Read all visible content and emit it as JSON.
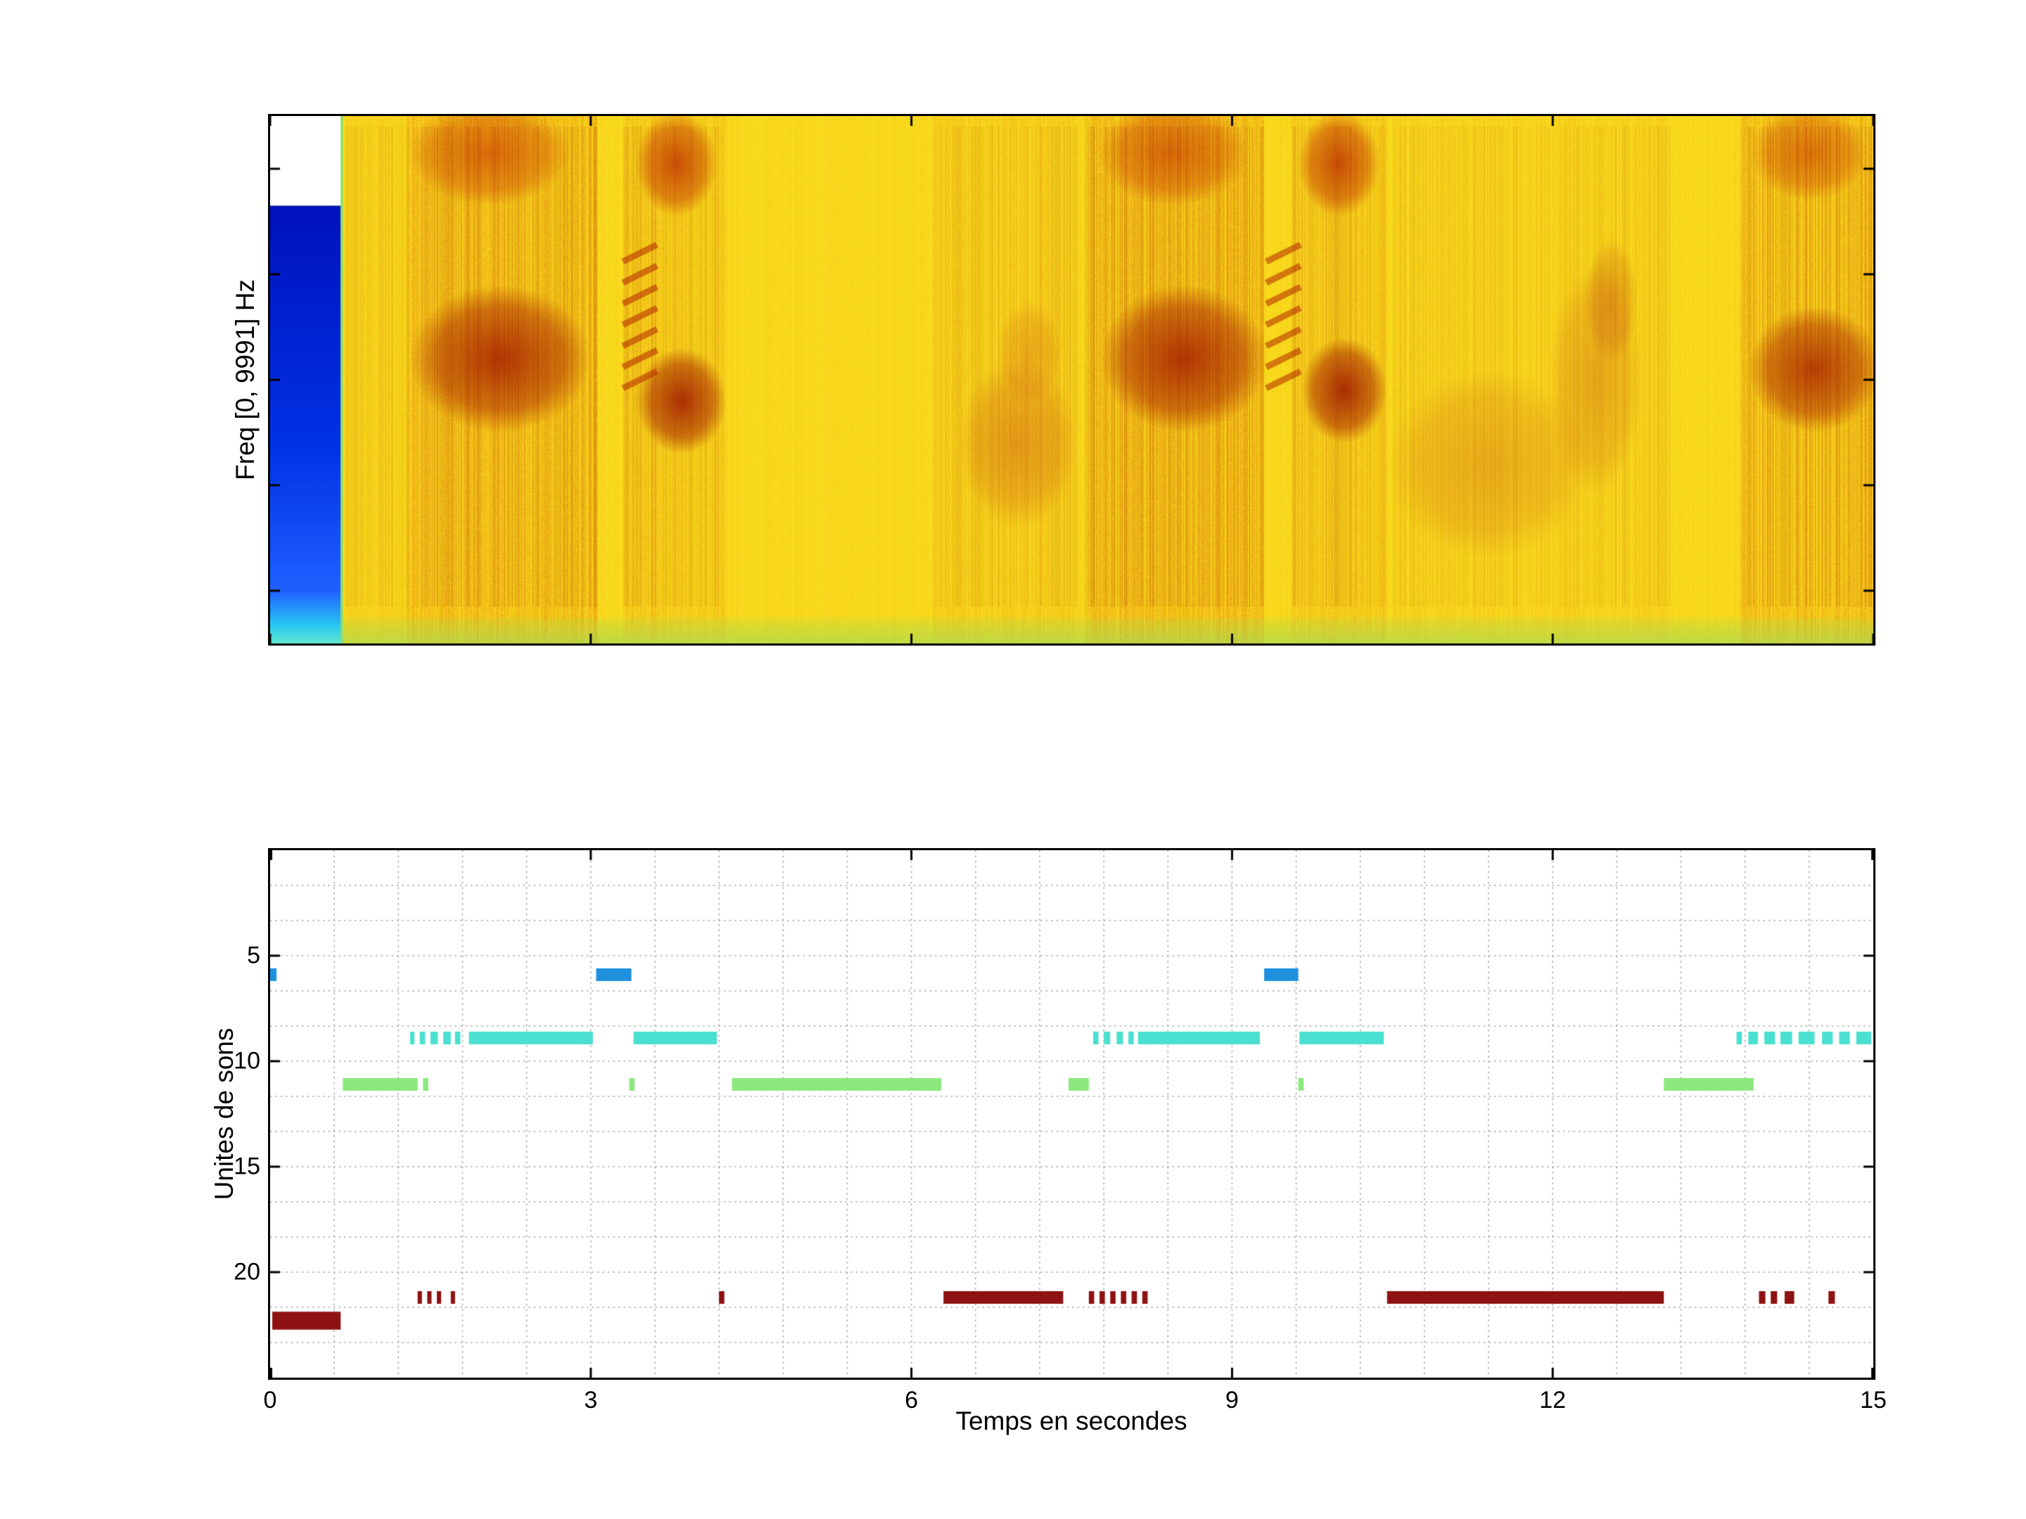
{
  "figure": {
    "background": "#ffffff"
  },
  "chart_data": [
    {
      "type": "heatmap",
      "title": "",
      "ylabel": "Freq [0, 9991] Hz",
      "xlabel": "",
      "xlim": [
        0,
        15
      ],
      "ylim_hz": [
        0,
        9991
      ],
      "legend": "none",
      "palette": {
        "base": "#fae01e",
        "stripe": "#d75000",
        "bottom_strip": "#a0dc5a",
        "blue_top": "#0012bc",
        "blue_mid": "#0032e6",
        "blue_low": "#2060ff",
        "cyan_bottom": "#28c8f0",
        "white": "#ffffff",
        "sep": "#78e088"
      },
      "left_block": {
        "x1": 0.66,
        "white_y1": 0.17
      },
      "bottom_strip_y0": 0.95,
      "striation_bands": [
        {
          "x0": 0.7,
          "x1": 1.28,
          "s": 0.22
        },
        {
          "x0": 1.28,
          "x1": 3.06,
          "s": 0.5
        },
        {
          "x0": 3.3,
          "x1": 4.25,
          "s": 0.33
        },
        {
          "x0": 6.2,
          "x1": 7.55,
          "s": 0.28
        },
        {
          "x0": 7.62,
          "x1": 9.3,
          "s": 0.5
        },
        {
          "x0": 9.55,
          "x1": 10.45,
          "s": 0.33
        },
        {
          "x0": 10.5,
          "x1": 13.1,
          "s": 0.22
        },
        {
          "x0": 13.75,
          "x1": 15.0,
          "s": 0.48
        }
      ],
      "blobs": [
        {
          "x": 2.15,
          "y": 0.46,
          "rx": 0.85,
          "ry": 0.14,
          "color": "#a81e00",
          "a": 0.85
        },
        {
          "x": 2.05,
          "y": 0.07,
          "rx": 0.75,
          "ry": 0.1,
          "color": "#c83200",
          "a": 0.6
        },
        {
          "x": 3.85,
          "y": 0.54,
          "rx": 0.42,
          "ry": 0.1,
          "color": "#a01500",
          "a": 0.85
        },
        {
          "x": 3.8,
          "y": 0.09,
          "rx": 0.38,
          "ry": 0.1,
          "color": "#c02800",
          "a": 0.75
        },
        {
          "x": 7.0,
          "y": 0.62,
          "rx": 0.55,
          "ry": 0.16,
          "color": "#d06414",
          "a": 0.5
        },
        {
          "x": 7.1,
          "y": 0.45,
          "rx": 0.3,
          "ry": 0.1,
          "color": "#d06414",
          "a": 0.35
        },
        {
          "x": 8.55,
          "y": 0.46,
          "rx": 0.78,
          "ry": 0.14,
          "color": "#a81e00",
          "a": 0.85
        },
        {
          "x": 8.45,
          "y": 0.07,
          "rx": 0.7,
          "ry": 0.1,
          "color": "#c83200",
          "a": 0.6
        },
        {
          "x": 10.05,
          "y": 0.52,
          "rx": 0.4,
          "ry": 0.1,
          "color": "#a01500",
          "a": 0.85
        },
        {
          "x": 10.0,
          "y": 0.09,
          "rx": 0.38,
          "ry": 0.1,
          "color": "#c02800",
          "a": 0.75
        },
        {
          "x": 11.4,
          "y": 0.66,
          "rx": 0.95,
          "ry": 0.18,
          "color": "#d87818",
          "a": 0.42
        },
        {
          "x": 12.4,
          "y": 0.5,
          "rx": 0.45,
          "ry": 0.22,
          "color": "#d06818",
          "a": 0.4
        },
        {
          "x": 12.55,
          "y": 0.35,
          "rx": 0.25,
          "ry": 0.12,
          "color": "#c85a10",
          "a": 0.45
        },
        {
          "x": 14.45,
          "y": 0.48,
          "rx": 0.62,
          "ry": 0.12,
          "color": "#a81e00",
          "a": 0.8
        },
        {
          "x": 14.4,
          "y": 0.07,
          "rx": 0.55,
          "ry": 0.09,
          "color": "#c83200",
          "a": 0.55
        }
      ],
      "chevrons": [
        {
          "x0": 3.3,
          "x1": 3.62,
          "ytop": 0.26,
          "ybot": 0.5,
          "count": 7
        },
        {
          "x0": 9.32,
          "x1": 9.64,
          "ytop": 0.26,
          "ybot": 0.5,
          "count": 7
        }
      ]
    },
    {
      "type": "segments",
      "title": "",
      "xlabel": "Temps en secondes",
      "ylabel": "Unites de sons",
      "xlim": [
        0,
        15
      ],
      "ylim": [
        0,
        25
      ],
      "y_reversed": true,
      "xticks": [
        0,
        3,
        6,
        9,
        12,
        15
      ],
      "yticks": [
        5,
        10,
        15,
        20
      ],
      "grid": {
        "x_step": 0.6,
        "y_step": 1.6667,
        "color": "#a8a8a8",
        "style": "dotted"
      },
      "series": [
        {
          "name": "blue-units",
          "color": "#1e90dd",
          "y": 5.9,
          "h": 0.6,
          "segments": [
            [
              0.0,
              0.06
            ],
            [
              3.05,
              3.38
            ],
            [
              9.3,
              9.62
            ]
          ]
        },
        {
          "name": "cyan-units",
          "color": "#4ae0d0",
          "y": 8.9,
          "h": 0.6,
          "segments": [
            [
              1.31,
              1.35
            ],
            [
              1.4,
              1.45
            ],
            [
              1.5,
              1.57
            ],
            [
              1.62,
              1.69
            ],
            [
              1.73,
              1.78
            ],
            [
              1.86,
              3.02
            ],
            [
              3.4,
              4.18
            ],
            [
              7.7,
              7.75
            ],
            [
              7.8,
              7.86
            ],
            [
              7.92,
              7.98
            ],
            [
              8.03,
              8.08
            ],
            [
              8.12,
              9.26
            ],
            [
              9.63,
              10.42
            ],
            [
              13.72,
              13.77
            ],
            [
              13.83,
              13.92
            ],
            [
              13.98,
              14.08
            ],
            [
              14.13,
              14.24
            ],
            [
              14.3,
              14.45
            ],
            [
              14.52,
              14.62
            ],
            [
              14.68,
              14.78
            ],
            [
              14.84,
              14.98
            ]
          ]
        },
        {
          "name": "green-units",
          "color": "#8ce87d",
          "y": 11.1,
          "h": 0.6,
          "segments": [
            [
              0.68,
              1.38
            ],
            [
              1.43,
              1.48
            ],
            [
              3.36,
              3.41
            ],
            [
              4.32,
              6.28
            ],
            [
              7.47,
              7.66
            ],
            [
              9.62,
              9.67
            ],
            [
              13.04,
              13.88
            ]
          ]
        },
        {
          "name": "darkred-units",
          "color": "#8e1212",
          "y": 21.2,
          "h": 0.6,
          "segments": [
            [
              1.38,
              1.42
            ],
            [
              1.47,
              1.51
            ],
            [
              1.56,
              1.6
            ],
            [
              1.69,
              1.73
            ],
            [
              4.2,
              4.25
            ],
            [
              6.3,
              7.42
            ],
            [
              7.66,
              7.71
            ],
            [
              7.76,
              7.81
            ],
            [
              7.86,
              7.91
            ],
            [
              7.96,
              8.01
            ],
            [
              8.06,
              8.11
            ],
            [
              8.16,
              8.21
            ],
            [
              10.45,
              13.04
            ],
            [
              13.93,
              13.99
            ],
            [
              14.04,
              14.1
            ],
            [
              14.17,
              14.26
            ],
            [
              14.58,
              14.64
            ]
          ]
        },
        {
          "name": "darkred-first",
          "color": "#8e1212",
          "y": 22.3,
          "h": 0.85,
          "segments": [
            [
              0.02,
              0.66
            ]
          ]
        }
      ]
    }
  ]
}
